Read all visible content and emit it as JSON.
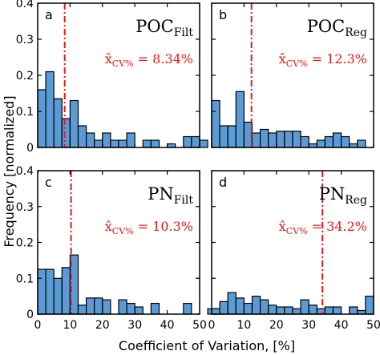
{
  "chart_data": {
    "type": "bar",
    "xlabel": "Coefficient of Variation, [%]",
    "ylabel": "Frequency [normalized]",
    "xlim": [
      0,
      50
    ],
    "ylim": [
      0,
      0.4
    ],
    "x_ticks": [
      "0",
      "10",
      "20",
      "30",
      "40",
      "50"
    ],
    "y_ticks": [
      "0",
      "0.1",
      "0.2",
      "0.3",
      "0.4"
    ],
    "bin_width": 2.5,
    "grid": false,
    "bar_color": "#5b9bd5",
    "median_line_color": "#e41a1c",
    "panels": [
      {
        "letter": "a",
        "name": "POC",
        "subscript": "Filt",
        "stat_symbol": "x̂",
        "stat_subscript": "CV%",
        "stat_value": "= 8.34%",
        "median": 8.34,
        "values": [
          0.16,
          0.21,
          0.135,
          0.08,
          0.13,
          0.06,
          0.04,
          0.02,
          0.04,
          0.02,
          0.02,
          0.04,
          0.0,
          0.02,
          0.02,
          0.0,
          0.01,
          0.0,
          0.03,
          0.03,
          0.02,
          0.0
        ]
      },
      {
        "letter": "b",
        "name": "POC",
        "subscript": "Reg",
        "stat_symbol": "x̂",
        "stat_subscript": "CV%",
        "stat_value": "= 12.3%",
        "median": 12.3,
        "values": [
          0.13,
          0.06,
          0.06,
          0.155,
          0.07,
          0.04,
          0.05,
          0.04,
          0.045,
          0.045,
          0.045,
          0.03,
          0.01,
          0.02,
          0.03,
          0.04,
          0.03,
          0.01,
          0.02,
          0.0
        ]
      },
      {
        "letter": "c",
        "name": "PN",
        "subscript": "Filt",
        "stat_symbol": "x̂",
        "stat_subscript": "CV%",
        "stat_value": "= 10.3%",
        "median": 10.3,
        "values": [
          0.125,
          0.125,
          0.1,
          0.13,
          0.165,
          0.025,
          0.045,
          0.045,
          0.04,
          0.0,
          0.04,
          0.03,
          0.02,
          0.0,
          0.03,
          0.0,
          0.0,
          0.0,
          0.03,
          0.0,
          0.0,
          0.015,
          0.015
        ]
      },
      {
        "letter": "d",
        "name": "PN",
        "subscript": "Reg",
        "stat_symbol": "x̂",
        "stat_subscript": "CV%",
        "stat_value": "= 34.2%",
        "median": 34.2,
        "values": [
          0.015,
          0.035,
          0.06,
          0.045,
          0.03,
          0.05,
          0.04,
          0.025,
          0.02,
          0.02,
          0.015,
          0.04,
          0.025,
          0.015,
          0.02,
          0.02,
          0.0,
          0.02,
          0.01,
          0.05
        ]
      }
    ]
  }
}
